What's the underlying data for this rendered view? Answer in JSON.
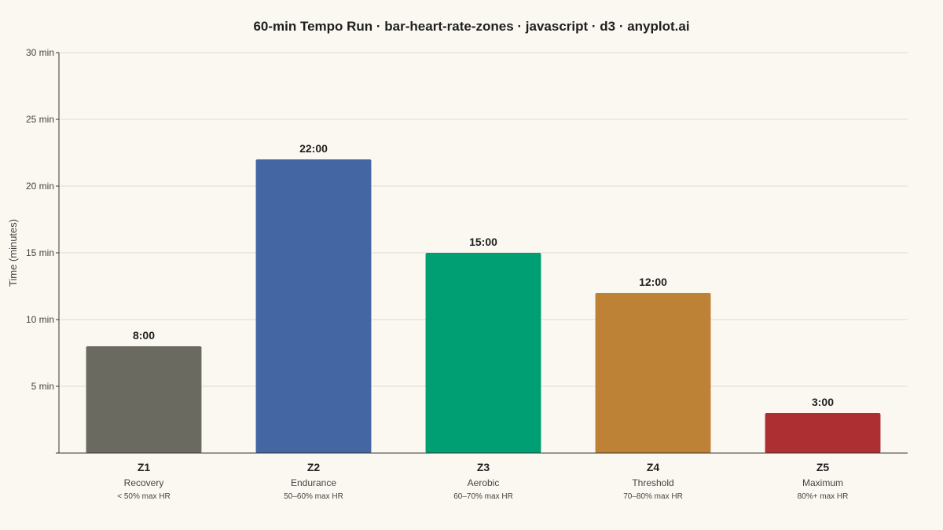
{
  "chart_data": {
    "type": "bar",
    "title": "60-min Tempo Run · bar-heart-rate-zones · javascript · d3 · anyplot.ai",
    "ylabel": "Time (minutes)",
    "ylim": [
      0,
      30
    ],
    "yticks": [
      5,
      10,
      15,
      20,
      25,
      30
    ],
    "ytick_suffix": " min",
    "grid": true,
    "categories": [
      "Z1",
      "Z2",
      "Z3",
      "Z4",
      "Z5"
    ],
    "zone_names": [
      "Recovery",
      "Endurance",
      "Aerobic",
      "Threshold",
      "Maximum"
    ],
    "zone_ranges": [
      "< 50% max HR",
      "50–60% max HR",
      "60–70% max HR",
      "70–80% max HR",
      "80%+ max HR"
    ],
    "values": [
      8,
      22,
      15,
      12,
      3
    ],
    "value_labels": [
      "8:00",
      "22:00",
      "15:00",
      "12:00",
      "3:00"
    ],
    "colors": [
      "#6b6a60",
      "#4466a3",
      "#009e73",
      "#bd8235",
      "#ae2f32"
    ]
  }
}
